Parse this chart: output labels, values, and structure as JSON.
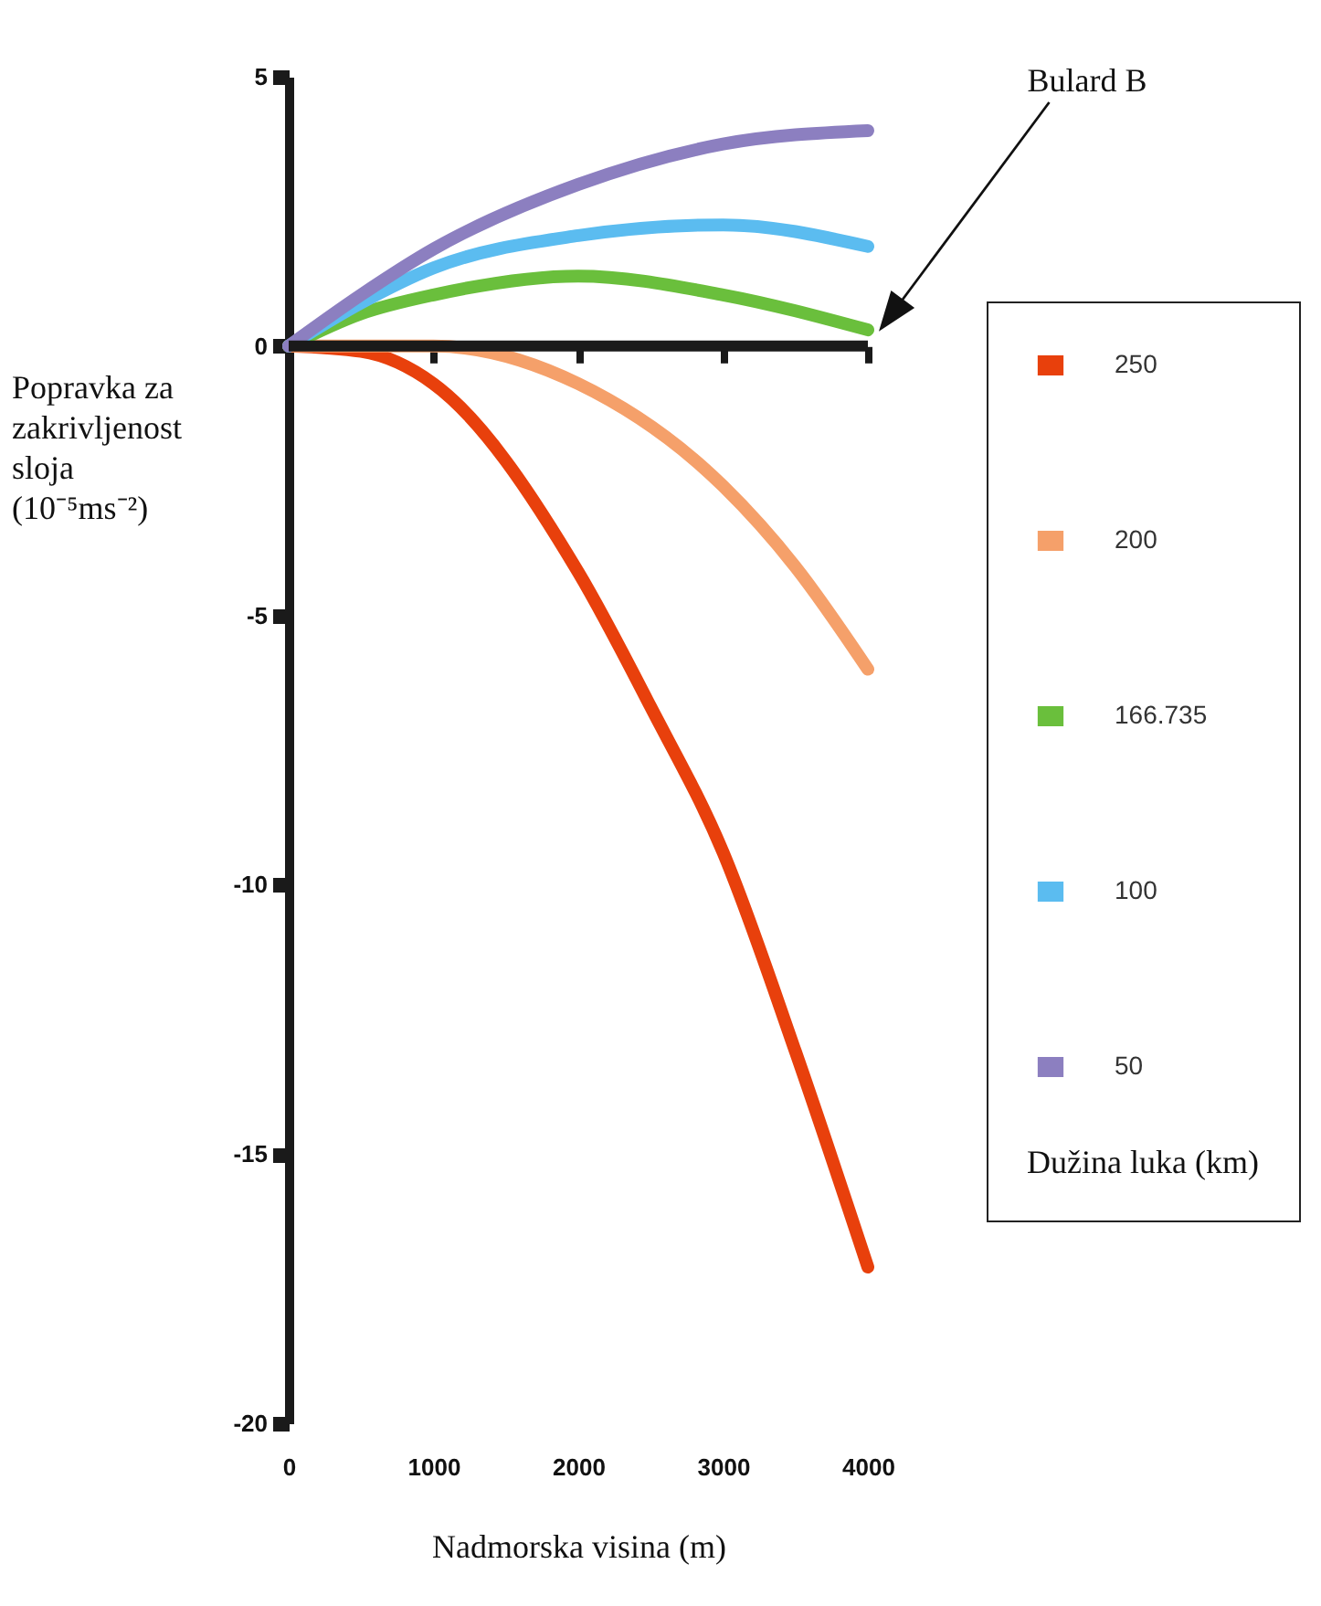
{
  "chart_data": {
    "type": "line",
    "xlabel": "Nadmorska visina (m)",
    "ylabel": "Popravka za zakrivljenost sloja (10⁻⁵ms⁻²)",
    "legend_title": "Dužina luka (km)",
    "legend": "right",
    "grid": false,
    "marker": "none",
    "line_style": "solid",
    "xlim": [
      0,
      4000
    ],
    "xticks": [
      0,
      1000,
      2000,
      3000,
      4000
    ],
    "ylim": [
      -20,
      5
    ],
    "yticks": [
      -20,
      -15,
      -10,
      -5,
      0,
      5
    ],
    "annotations": [
      "Bulard B"
    ],
    "ref_lines": [
      {
        "axis": "y",
        "value": 0,
        "color": "#1a1a1a"
      }
    ],
    "series": [
      {
        "name": "250",
        "color": "#e8400c",
        "x": [
          0,
          500,
          1000,
          2000,
          2500,
          3000,
          3500,
          4000
        ],
        "values": [
          0,
          -0.1,
          -0.7,
          -4.2,
          -6.7,
          -9.4,
          -13.1,
          -17.1
        ]
      },
      {
        "name": "200",
        "color": "#f5a06a",
        "x": [
          0,
          500,
          1000,
          2000,
          3000,
          3500,
          4000
        ],
        "values": [
          0,
          0,
          0,
          -0.7,
          -2.6,
          -4.1,
          -6.0
        ]
      },
      {
        "name": "166.735",
        "color": "#6abf3c",
        "x": [
          0,
          500,
          1000,
          2000,
          3000,
          4000
        ],
        "values": [
          0,
          0.6,
          0.95,
          1.3,
          0.95,
          0.3
        ]
      },
      {
        "name": "100",
        "color": "#5bbcf0",
        "x": [
          0,
          500,
          1000,
          2000,
          3000,
          4000
        ],
        "values": [
          0,
          0.8,
          1.45,
          2.05,
          2.25,
          1.85
        ]
      },
      {
        "name": "50",
        "color": "#8c7fc0",
        "x": [
          0,
          500,
          1000,
          2000,
          3000,
          4000
        ],
        "values": [
          0,
          0.95,
          1.8,
          3.0,
          3.75,
          4.0
        ]
      }
    ]
  }
}
